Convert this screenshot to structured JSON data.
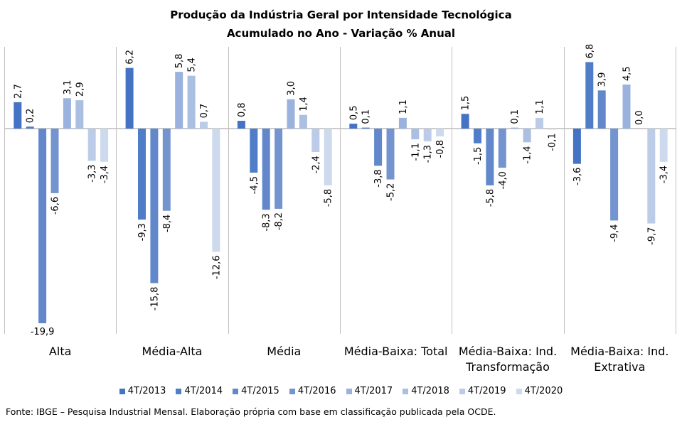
{
  "chart_data": {
    "type": "bar",
    "title": "Produção da Indústria Geral por Intensidade Tecnológica",
    "subtitle": "Acumulado no Ano - Variação % Anual",
    "categories": [
      "Alta",
      "Média-Alta",
      "Média",
      "Média-Baixa: Total",
      "Média-Baixa: Ind. Transformação",
      "Média-Baixa: Ind. Extrativa"
    ],
    "category_lines": [
      [
        "Alta"
      ],
      [
        "Média-Alta"
      ],
      [
        "Média"
      ],
      [
        "Média-Baixa: Total"
      ],
      [
        "Média-Baixa: Ind.",
        "Transformação"
      ],
      [
        "Média-Baixa: Ind.",
        "Extrativa"
      ]
    ],
    "series": [
      {
        "name": "4T/2013",
        "color": "#4472C4",
        "values": [
          2.7,
          6.2,
          0.8,
          0.5,
          1.5,
          -3.6
        ]
      },
      {
        "name": "4T/2014",
        "color": "#4F7DC7",
        "values": [
          0.2,
          -9.3,
          -4.5,
          0.1,
          -1.5,
          6.8
        ]
      },
      {
        "name": "4T/2015",
        "color": "#6288CB",
        "values": [
          -19.9,
          -15.8,
          -8.3,
          -3.8,
          -5.8,
          3.9
        ]
      },
      {
        "name": "4T/2016",
        "color": "#7494D0",
        "values": [
          -6.6,
          -8.4,
          -8.2,
          -5.2,
          -4.0,
          -9.4
        ]
      },
      {
        "name": "4T/2017",
        "color": "#9AB2DD",
        "values": [
          3.1,
          5.8,
          3.0,
          1.1,
          0.1,
          4.5
        ]
      },
      {
        "name": "4T/2018",
        "color": "#ABBFE3",
        "values": [
          2.9,
          5.4,
          1.4,
          -1.1,
          -1.4,
          0.0
        ]
      },
      {
        "name": "4T/2019",
        "color": "#BCCCE8",
        "values": [
          -3.3,
          0.7,
          -2.4,
          -1.3,
          1.1,
          -9.7
        ]
      },
      {
        "name": "4T/2020",
        "color": "#CDD9ED",
        "values": [
          -3.4,
          -12.6,
          -5.8,
          -0.8,
          -0.1,
          -3.4
        ]
      }
    ],
    "labels": [
      [
        "2,7",
        "6,2",
        "0,8",
        "0,5",
        "1,5",
        "-3,6"
      ],
      [
        "0,2",
        "-9,3",
        "-4,5",
        "0,1",
        "-1,5",
        "6,8"
      ],
      [
        "-19,9",
        "-15,8",
        "-8,3",
        "-3,8",
        "-5,8",
        "3,9"
      ],
      [
        "-6,6",
        "-8,4",
        "-8,2",
        "-5,2",
        "-4,0",
        "-9,4"
      ],
      [
        "3,1",
        "5,8",
        "3,0",
        "1,1",
        "0,1",
        "4,5"
      ],
      [
        "2,9",
        "5,4",
        "1,4",
        "-1,1",
        "-1,4",
        "0,0"
      ],
      [
        "-3,3",
        "0,7",
        "-2,4",
        "-1,3",
        "1,1",
        "-9,7"
      ],
      [
        "-3,4",
        "-12,6",
        "-5,8",
        "-0,8",
        "-0,1",
        "-3,4"
      ]
    ],
    "ylim": [
      -20.2,
      8.2
    ],
    "grid": false,
    "legend_position": "bottom"
  },
  "source": "Fonte: IBGE – Pesquisa Industrial Mensal. Elaboração própria com base em classificação publicada pela OCDE."
}
